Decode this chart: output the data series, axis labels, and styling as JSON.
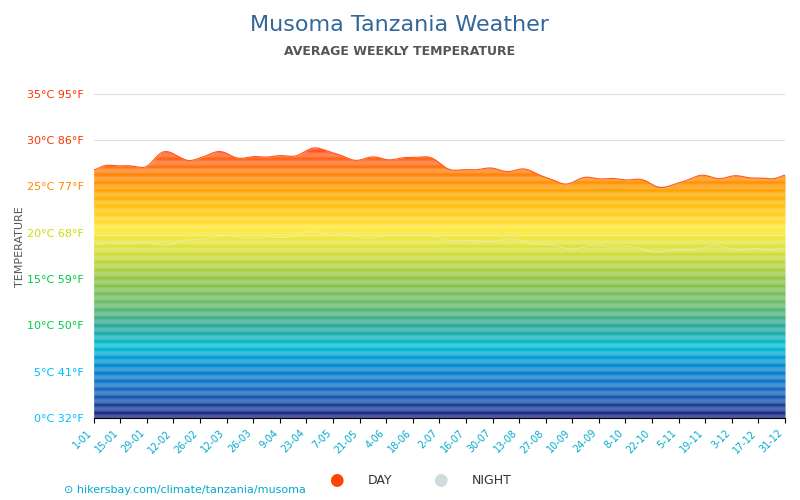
{
  "title": "Musoma Tanzania Weather",
  "subtitle": "AVERAGE WEEKLY TEMPERATURE",
  "ylabel": "TEMPERATURE",
  "url_text": "hikersbay.com/climate/tanzania/musoma",
  "yticks_c": [
    0,
    5,
    10,
    15,
    20,
    25,
    30,
    35
  ],
  "ytick_labels": [
    "0°C 32°F",
    "5°C 41°F",
    "10°C 50°F",
    "15°C 59°F",
    "20°C 68°F",
    "25°C 77°F",
    "30°C 86°F",
    "35°C 95°F"
  ],
  "ytick_colors": [
    "#00bfff",
    "#00bfff",
    "#00cc44",
    "#00cc44",
    "#ccdd00",
    "#ff8800",
    "#ff3300",
    "#ff3300"
  ],
  "ylim": [
    0,
    37
  ],
  "xtick_labels": [
    "1-01",
    "15-01",
    "29-01",
    "12-02",
    "26-02",
    "12-03",
    "26-03",
    "9-04",
    "23-04",
    "7-05",
    "21-05",
    "4-06",
    "18-06",
    "2-07",
    "16-07",
    "30-07",
    "13-08",
    "27-08",
    "10-09",
    "24-09",
    "8-10",
    "22-10",
    "5-11",
    "19-11",
    "3-12",
    "17-12",
    "31-12"
  ],
  "title_color": "#336699",
  "subtitle_color": "#555555",
  "background_color": "#ffffff",
  "gradient_colors": [
    "#1a237e",
    "#1565c0",
    "#0288d1",
    "#00bcd4",
    "#26a69a",
    "#66bb6a",
    "#8bc34a",
    "#cddc39",
    "#ffeb3b",
    "#ffc107",
    "#ff9800",
    "#ff5722",
    "#f44336"
  ],
  "gradient_stops": [
    0.0,
    0.08,
    0.16,
    0.22,
    0.28,
    0.35,
    0.42,
    0.5,
    0.58,
    0.65,
    0.72,
    0.82,
    1.0
  ],
  "day_color": "#ff4500",
  "night_color": "#ccdddd"
}
